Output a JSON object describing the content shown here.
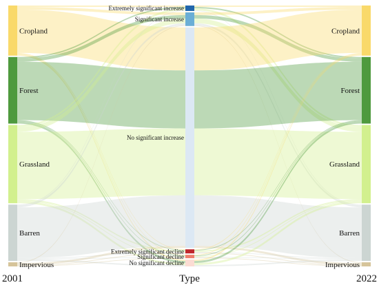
{
  "chart_data": {
    "type": "sankey",
    "axis_labels": {
      "left": "2001",
      "center": "Type",
      "right": "2022"
    },
    "left_nodes": [
      {
        "id": "cropland",
        "label": "Cropland",
        "value": 73,
        "color": "#F9D96A"
      },
      {
        "id": "forest",
        "label": "Forest",
        "value": 97,
        "color": "#4E9A3E"
      },
      {
        "id": "grassland",
        "label": "Grassland",
        "value": 114,
        "color": "#D2F08E"
      },
      {
        "id": "barren",
        "label": "Barren",
        "value": 82,
        "color": "#CCD5D2"
      },
      {
        "id": "impervious",
        "label": "Impervious",
        "value": 6,
        "color": "#D6C49A"
      }
    ],
    "middle_nodes": [
      {
        "id": "esi",
        "label": "Extremely significant increase",
        "value": 8,
        "color": "#2166AC"
      },
      {
        "id": "si",
        "label": "Significant increase",
        "value": 20,
        "color": "#6BAED6"
      },
      {
        "id": "nsi",
        "label": "No significant increase",
        "value": 323,
        "color": "#DCE8F4"
      },
      {
        "id": "esd",
        "label": "Extremely significant decline",
        "value": 6,
        "color": "#C0272D"
      },
      {
        "id": "sd",
        "label": "Significant decline",
        "value": 5,
        "color": "#EF7F6E"
      },
      {
        "id": "nsd",
        "label": "No significant decline",
        "value": 10,
        "color": "#FBDCD3"
      }
    ],
    "right_nodes": [
      {
        "id": "cropland",
        "label": "Cropland",
        "value": 73,
        "color": "#F9D96A"
      },
      {
        "id": "forest",
        "label": "Forest",
        "value": 97,
        "color": "#4E9A3E"
      },
      {
        "id": "grassland",
        "label": "Grassland",
        "value": 114,
        "color": "#D2F08E"
      },
      {
        "id": "barren",
        "label": "Barren",
        "value": 82,
        "color": "#CCD5D2"
      },
      {
        "id": "impervious",
        "label": "Impervious",
        "value": 6,
        "color": "#D6C49A"
      }
    ],
    "flows_2001_to_type": [
      {
        "source": "cropland",
        "target": "esi",
        "value": 2
      },
      {
        "source": "cropland",
        "target": "si",
        "value": 4
      },
      {
        "source": "cropland",
        "target": "nsi",
        "value": 63
      },
      {
        "source": "cropland",
        "target": "esd",
        "value": 1
      },
      {
        "source": "cropland",
        "target": "sd",
        "value": 1
      },
      {
        "source": "cropland",
        "target": "nsd",
        "value": 2
      },
      {
        "source": "forest",
        "target": "esi",
        "value": 2
      },
      {
        "source": "forest",
        "target": "si",
        "value": 5
      },
      {
        "source": "forest",
        "target": "nsi",
        "value": 85
      },
      {
        "source": "forest",
        "target": "esd",
        "value": 1
      },
      {
        "source": "forest",
        "target": "sd",
        "value": 1
      },
      {
        "source": "forest",
        "target": "nsd",
        "value": 3
      },
      {
        "source": "grassland",
        "target": "esi",
        "value": 3
      },
      {
        "source": "grassland",
        "target": "si",
        "value": 7
      },
      {
        "source": "grassland",
        "target": "nsi",
        "value": 98
      },
      {
        "source": "grassland",
        "target": "esd",
        "value": 2
      },
      {
        "source": "grassland",
        "target": "sd",
        "value": 1
      },
      {
        "source": "grassland",
        "target": "nsd",
        "value": 3
      },
      {
        "source": "barren",
        "target": "esi",
        "value": 1
      },
      {
        "source": "barren",
        "target": "si",
        "value": 3
      },
      {
        "source": "barren",
        "target": "nsi",
        "value": 74
      },
      {
        "source": "barren",
        "target": "esd",
        "value": 1
      },
      {
        "source": "barren",
        "target": "sd",
        "value": 1
      },
      {
        "source": "barren",
        "target": "nsd",
        "value": 2
      },
      {
        "source": "impervious",
        "target": "si",
        "value": 1
      },
      {
        "source": "impervious",
        "target": "nsi",
        "value": 3
      },
      {
        "source": "impervious",
        "target": "esd",
        "value": 1
      },
      {
        "source": "impervious",
        "target": "sd",
        "value": 1
      }
    ],
    "flows_type_to_2022": [
      {
        "source": "esi",
        "target": "cropland",
        "value": 2
      },
      {
        "source": "esi",
        "target": "forest",
        "value": 2
      },
      {
        "source": "esi",
        "target": "grassland",
        "value": 3
      },
      {
        "source": "esi",
        "target": "barren",
        "value": 1
      },
      {
        "source": "si",
        "target": "cropland",
        "value": 4
      },
      {
        "source": "si",
        "target": "forest",
        "value": 5
      },
      {
        "source": "si",
        "target": "grassland",
        "value": 7
      },
      {
        "source": "si",
        "target": "barren",
        "value": 3
      },
      {
        "source": "si",
        "target": "impervious",
        "value": 1
      },
      {
        "source": "nsi",
        "target": "cropland",
        "value": 63
      },
      {
        "source": "nsi",
        "target": "forest",
        "value": 85
      },
      {
        "source": "nsi",
        "target": "grassland",
        "value": 98
      },
      {
        "source": "nsi",
        "target": "barren",
        "value": 74
      },
      {
        "source": "nsi",
        "target": "impervious",
        "value": 3
      },
      {
        "source": "esd",
        "target": "cropland",
        "value": 1
      },
      {
        "source": "esd",
        "target": "forest",
        "value": 1
      },
      {
        "source": "esd",
        "target": "grassland",
        "value": 2
      },
      {
        "source": "esd",
        "target": "barren",
        "value": 1
      },
      {
        "source": "esd",
        "target": "impervious",
        "value": 1
      },
      {
        "source": "sd",
        "target": "cropland",
        "value": 1
      },
      {
        "source": "sd",
        "target": "forest",
        "value": 1
      },
      {
        "source": "sd",
        "target": "grassland",
        "value": 1
      },
      {
        "source": "sd",
        "target": "barren",
        "value": 1
      },
      {
        "source": "sd",
        "target": "impervious",
        "value": 1
      },
      {
        "source": "nsd",
        "target": "cropland",
        "value": 2
      },
      {
        "source": "nsd",
        "target": "forest",
        "value": 3
      },
      {
        "source": "nsd",
        "target": "grassland",
        "value": 3
      },
      {
        "source": "nsd",
        "target": "barren",
        "value": 2
      }
    ]
  }
}
